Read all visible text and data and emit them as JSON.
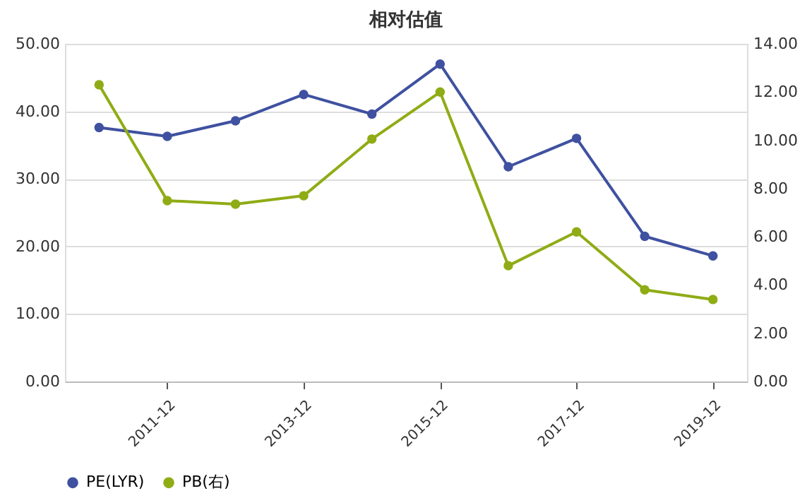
{
  "chart_data": {
    "type": "line",
    "title": "相对估值",
    "categories": [
      null,
      "2011-12",
      null,
      "2013-12",
      null,
      "2015-12",
      null,
      "2017-12",
      null,
      "2019-12"
    ],
    "series": [
      {
        "name": "PE(LYR)",
        "color": "#3f51a0",
        "values": [
          37.6,
          36.3,
          38.6,
          42.5,
          39.6,
          47.0,
          31.8,
          36.0,
          21.5,
          18.6
        ]
      },
      {
        "name": "PB(右)",
        "color": "#8fac15",
        "axis": "y2",
        "values": [
          12.3,
          7.5,
          7.35,
          7.7,
          10.05,
          12.0,
          4.8,
          6.2,
          3.8,
          3.4
        ]
      }
    ],
    "ylim": [
      0,
      50
    ],
    "yticks": [
      {
        "value": 0,
        "label": "0.00"
      },
      {
        "value": 10,
        "label": "10.00"
      },
      {
        "value": 20,
        "label": "20.00"
      },
      {
        "value": 30,
        "label": "30.00"
      },
      {
        "value": 40,
        "label": "40.00"
      },
      {
        "value": 50,
        "label": "50.00"
      }
    ],
    "y2lim": [
      0,
      14
    ],
    "y2ticks": [
      {
        "value": 0,
        "label": "0.00"
      },
      {
        "value": 2,
        "label": "2.00"
      },
      {
        "value": 4,
        "label": "4.00"
      },
      {
        "value": 6,
        "label": "6.00"
      },
      {
        "value": 8,
        "label": "8.00"
      },
      {
        "value": 10,
        "label": "10.00"
      },
      {
        "value": 12,
        "label": "12.00"
      },
      {
        "value": 14,
        "label": "14.00"
      }
    ],
    "grid": "y",
    "legend": "bottom",
    "marker": "circle",
    "line_style": "solid"
  }
}
